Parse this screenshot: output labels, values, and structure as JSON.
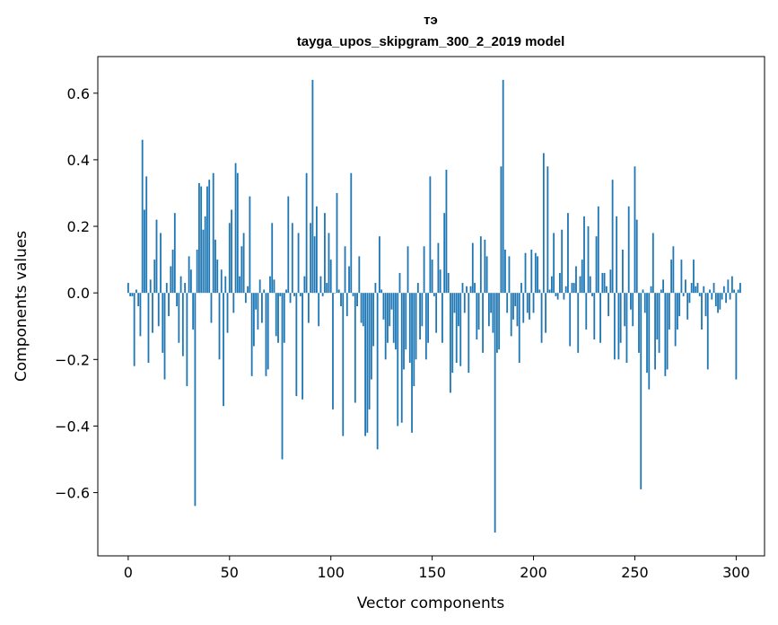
{
  "chart_data": {
    "type": "bar",
    "title_line1": "тэ",
    "title_line2": "tayga_upos_skipgram_300_2_2019 model",
    "xlabel": "Vector components",
    "ylabel": "Components values",
    "xlim": [
      -15,
      314
    ],
    "ylim": [
      -0.79,
      0.71
    ],
    "xticks": [
      0,
      50,
      100,
      150,
      200,
      250,
      300
    ],
    "xtick_labels": [
      "0",
      "50",
      "100",
      "150",
      "200",
      "250",
      "300"
    ],
    "yticks": [
      -0.6,
      -0.4,
      -0.2,
      0.0,
      0.2,
      0.4,
      0.6
    ],
    "ytick_labels": [
      "−0.6",
      "−0.4",
      "−0.2",
      "0.0",
      "0.2",
      "0.4",
      "0.6"
    ],
    "bar_color": "#1f77b4",
    "values": [
      0.03,
      -0.01,
      -0.01,
      -0.22,
      0.01,
      -0.04,
      -0.13,
      0.46,
      0.25,
      0.35,
      -0.21,
      0.04,
      -0.12,
      0.1,
      0.22,
      -0.1,
      0.18,
      -0.18,
      -0.26,
      0.03,
      -0.07,
      0.08,
      0.13,
      0.24,
      -0.04,
      -0.15,
      0.05,
      -0.19,
      0.03,
      -0.28,
      0.11,
      0.07,
      -0.11,
      -0.64,
      0.13,
      0.33,
      0.32,
      0.19,
      0.23,
      0.32,
      0.34,
      -0.09,
      0.36,
      0.16,
      0.1,
      -0.2,
      0.07,
      -0.34,
      0.05,
      -0.12,
      0.21,
      0.25,
      -0.06,
      0.39,
      0.36,
      0.05,
      0.14,
      0.18,
      -0.03,
      0.02,
      0.29,
      -0.25,
      -0.16,
      -0.05,
      -0.11,
      0.04,
      -0.09,
      0.01,
      -0.25,
      -0.23,
      0.05,
      0.21,
      0.04,
      -0.13,
      -0.15,
      -0.01,
      -0.5,
      -0.15,
      0.01,
      0.29,
      -0.03,
      0.21,
      -0.01,
      -0.31,
      0.18,
      -0.01,
      -0.32,
      0.05,
      0.36,
      -0.09,
      0.21,
      0.64,
      0.17,
      0.26,
      -0.1,
      0.05,
      -0.01,
      0.24,
      0.03,
      0.18,
      0.1,
      -0.35,
      0.0,
      0.3,
      0.01,
      -0.04,
      -0.43,
      0.14,
      -0.07,
      0.08,
      0.36,
      -0.01,
      -0.33,
      -0.04,
      0.11,
      -0.09,
      -0.1,
      -0.43,
      -0.42,
      -0.35,
      -0.26,
      -0.16,
      0.03,
      -0.47,
      0.17,
      0.01,
      -0.08,
      -0.2,
      -0.15,
      -0.1,
      -0.05,
      -0.15,
      -0.17,
      -0.4,
      0.06,
      -0.39,
      -0.23,
      -0.17,
      0.14,
      -0.21,
      -0.42,
      -0.28,
      -0.2,
      0.03,
      -0.14,
      -0.1,
      0.14,
      -0.2,
      -0.15,
      0.35,
      0.1,
      -0.01,
      -0.12,
      0.15,
      0.07,
      -0.15,
      0.24,
      0.37,
      0.06,
      -0.3,
      -0.24,
      -0.06,
      -0.21,
      -0.1,
      -0.22,
      0.03,
      -0.06,
      0.02,
      -0.24,
      0.02,
      0.15,
      0.03,
      -0.14,
      -0.11,
      0.17,
      -0.18,
      0.16,
      0.11,
      -0.1,
      -0.06,
      -0.12,
      -0.72,
      -0.18,
      -0.17,
      0.38,
      0.64,
      0.13,
      -0.06,
      0.11,
      -0.13,
      -0.08,
      -0.04,
      -0.1,
      -0.21,
      0.03,
      -0.09,
      0.12,
      -0.06,
      -0.08,
      0.13,
      -0.06,
      0.12,
      0.11,
      0.01,
      -0.15,
      0.42,
      -0.12,
      0.38,
      0.01,
      0.05,
      0.18,
      -0.01,
      -0.02,
      0.06,
      0.19,
      -0.02,
      0.02,
      0.24,
      -0.16,
      0.03,
      0.03,
      0.08,
      -0.18,
      0.05,
      0.1,
      0.23,
      -0.11,
      0.2,
      0.05,
      -0.01,
      -0.14,
      0.17,
      0.26,
      -0.15,
      0.06,
      0.06,
      0.02,
      -0.07,
      0.07,
      0.34,
      -0.2,
      0.23,
      -0.2,
      -0.15,
      0.13,
      -0.1,
      -0.21,
      0.26,
      -0.05,
      -0.1,
      0.38,
      0.22,
      -0.18,
      -0.59,
      0.01,
      -0.06,
      -0.24,
      -0.29,
      0.02,
      0.18,
      -0.23,
      -0.14,
      -0.18,
      0.01,
      0.04,
      -0.25,
      -0.23,
      -0.11,
      0.1,
      0.14,
      -0.16,
      -0.11,
      -0.07,
      0.1,
      -0.01,
      0.04,
      -0.08,
      -0.03,
      0.03,
      0.1,
      0.02,
      0.03,
      -0.01,
      -0.11,
      0.02,
      -0.07,
      -0.23,
      0.01,
      -0.02,
      0.03,
      -0.04,
      -0.06,
      -0.05,
      -0.02,
      0.02,
      -0.03,
      0.04,
      -0.02,
      0.05,
      0.01,
      -0.26,
      0.01,
      0.03
    ]
  }
}
